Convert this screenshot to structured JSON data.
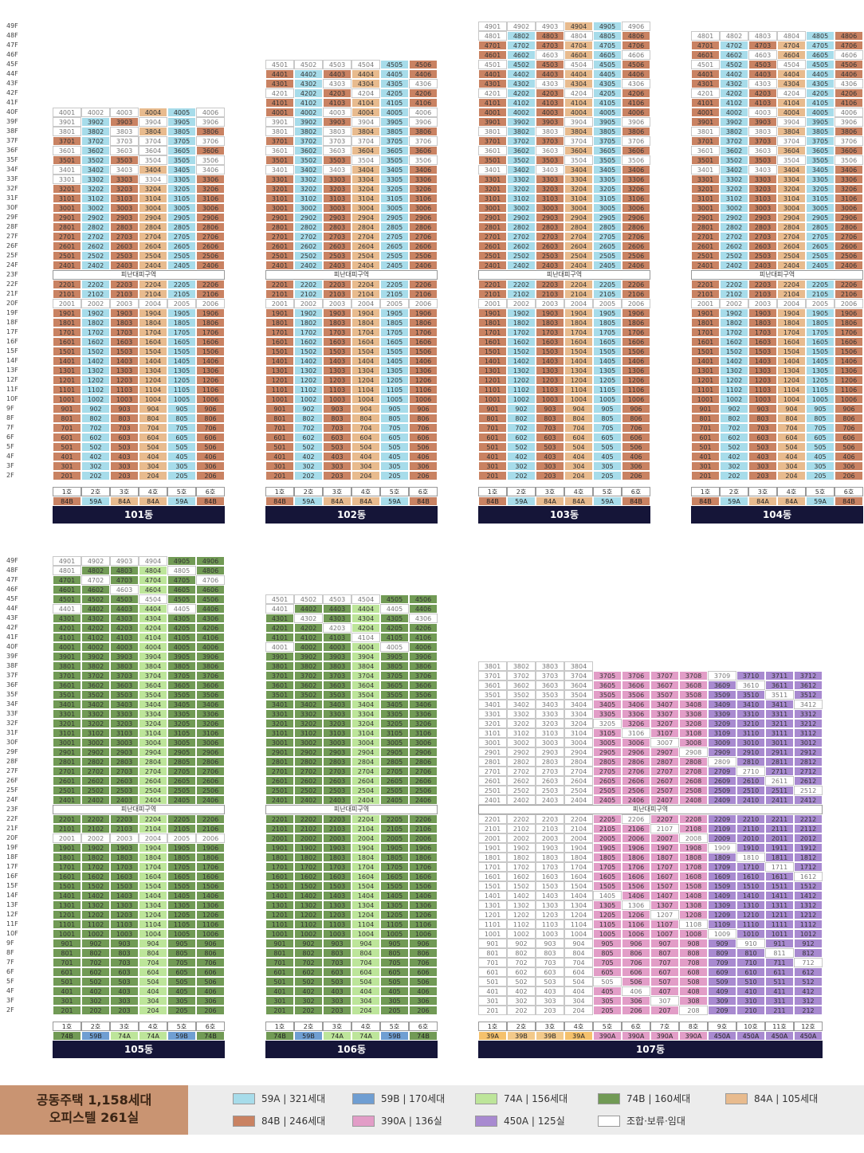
{
  "colors": {
    "59A": "#a7dcea",
    "59B": "#6f9ed2",
    "74A": "#bde59a",
    "74B": "#719a55",
    "84A": "#e8bb8e",
    "84B": "#c98262",
    "390A": "#e29dc7",
    "450A": "#a88ad0",
    "R": "#ffffff"
  },
  "refuge_label": "피난대피구역",
  "floors_top": [
    "49F",
    "48F",
    "47F",
    "46F",
    "45F",
    "44F",
    "43F",
    "42F",
    "41F",
    "40F",
    "39F",
    "38F",
    "37F",
    "36F",
    "35F",
    "34F",
    "33F",
    "32F",
    "31F",
    "30F",
    "29F",
    "28F",
    "27F",
    "26F",
    "25F",
    "24F",
    "23F",
    "22F",
    "21F",
    "20F",
    "19F",
    "18F",
    "17F",
    "16F",
    "15F",
    "14F",
    "13F",
    "12F",
    "11F",
    "10F",
    "9F",
    "8F",
    "7F",
    "6F",
    "5F",
    "4F",
    "3F",
    "2F"
  ],
  "floors_bottom": [
    "49F",
    "48F",
    "47F",
    "46F",
    "45F",
    "44F",
    "43F",
    "42F",
    "41F",
    "40F",
    "39F",
    "38F",
    "37F",
    "36F",
    "35F",
    "34F",
    "33F",
    "32F",
    "31F",
    "30F",
    "29F",
    "28F",
    "27F",
    "26F",
    "25F",
    "24F",
    "23F",
    "22F",
    "21F",
    "20F",
    "19F",
    "18F",
    "17F",
    "16F",
    "15F",
    "14F",
    "13F",
    "12F",
    "11F",
    "10F",
    "9F",
    "8F",
    "7F",
    "6F",
    "5F",
    "4F",
    "3F",
    "2F"
  ],
  "buildings": [
    {
      "name": "101동",
      "top_floor": 40,
      "units": [
        "1호",
        "2호",
        "3호",
        "4호",
        "5호",
        "6호"
      ],
      "types": [
        "84B",
        "59A",
        "84A",
        "84A",
        "59A",
        "84B"
      ],
      "default": [
        "84B",
        "59A",
        "84B",
        "84A",
        "59A",
        "84B"
      ],
      "overrides": {
        "40": "RR_AAR_R84A_84B",
        "39": "RR_RR_RR",
        "38": "RR_RR_RR",
        "37": "RR_RR_RR",
        "36": "RR_RR_RR",
        "35": "84A_84A_84A_RR_R",
        "34": "RR_RR_RR",
        "20": "RR_RR_RR"
      }
    },
    {
      "name": "102동",
      "top_floor": 45,
      "units": [
        "1호",
        "2호",
        "3호",
        "4호",
        "5호",
        "6호"
      ],
      "types": [
        "84B",
        "59A",
        "84A",
        "84A",
        "59A",
        "84B"
      ],
      "default": [
        "84B",
        "59A",
        "84B",
        "84A",
        "59A",
        "84B"
      ]
    },
    {
      "name": "103동",
      "top_floor": 49,
      "units": [
        "1호",
        "2호",
        "3호",
        "4호",
        "5호",
        "6호"
      ],
      "types": [
        "84B",
        "59A",
        "84A",
        "84A",
        "59A",
        "84B"
      ],
      "default": [
        "84B",
        "59A",
        "84B",
        "84A",
        "59A",
        "84B"
      ]
    },
    {
      "name": "104동",
      "top_floor": 48,
      "units": [
        "1호",
        "2호",
        "3호",
        "4호",
        "5호",
        "6호"
      ],
      "types": [
        "84B",
        "59A",
        "84A",
        "84A",
        "59A",
        "84B"
      ],
      "default": [
        "84B",
        "59A",
        "84B",
        "84A",
        "59A",
        "84B"
      ]
    },
    {
      "name": "105동",
      "top_floor": 49,
      "units": [
        "1호",
        "2호",
        "3호",
        "4호",
        "5호",
        "6호"
      ],
      "types": [
        "74B",
        "59B",
        "74A",
        "74A",
        "59B",
        "74B"
      ],
      "default": [
        "74B",
        "74B",
        "74B",
        "74A",
        "74B",
        "74B"
      ]
    },
    {
      "name": "106동",
      "top_floor": 45,
      "units": [
        "1호",
        "2호",
        "3호",
        "4호",
        "5호",
        "6호"
      ],
      "types": [
        "74B",
        "59B",
        "74A",
        "74A",
        "59B",
        "74B"
      ],
      "default": [
        "74B",
        "74B",
        "74B",
        "74A",
        "74B",
        "74B"
      ]
    },
    {
      "name": "107동",
      "top_floor": 38,
      "units": [
        "1호",
        "2호",
        "3호",
        "4호",
        "5호",
        "6호",
        "7호",
        "8호",
        "9호",
        "10호",
        "11호",
        "12호"
      ],
      "types": [
        "39A",
        "39B",
        "39B",
        "39A",
        "390A",
        "390A",
        "390A",
        "390A",
        "450A",
        "450A",
        "450A",
        "450A"
      ],
      "default": [
        "R",
        "R",
        "R",
        "R",
        "390A",
        "390A",
        "390A",
        "390A",
        "450A",
        "450A",
        "450A",
        "450A"
      ]
    }
  ],
  "legend": {
    "summary_line1": "공동주택 1,158세대",
    "summary_line2": "오피스텔 261실",
    "items": [
      {
        "key": "59A",
        "label": "59A | 321세대"
      },
      {
        "key": "59B",
        "label": "59B | 170세대"
      },
      {
        "key": "74A",
        "label": "74A | 156세대"
      },
      {
        "key": "74B",
        "label": "74B | 160세대"
      },
      {
        "key": "84A",
        "label": "84A | 105세대"
      },
      {
        "key": "84B",
        "label": "84B | 246세대"
      },
      {
        "key": "390A",
        "label": "390A | 136실"
      },
      {
        "key": "450A",
        "label": "450A | 125실"
      },
      {
        "key": "R",
        "label": "조합·보류·임대"
      }
    ]
  }
}
